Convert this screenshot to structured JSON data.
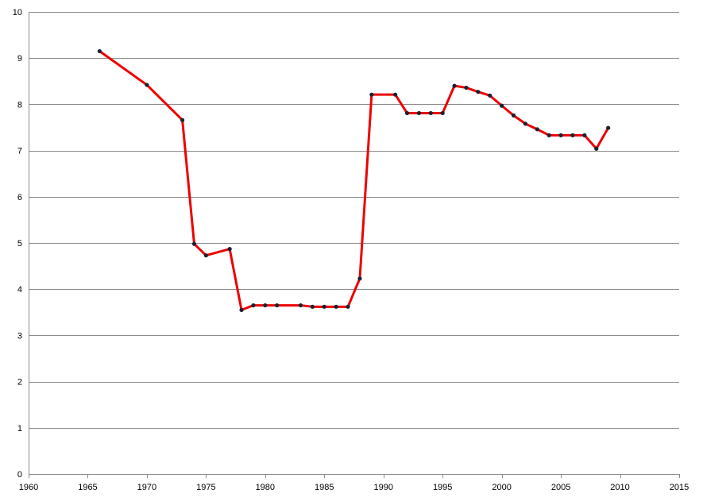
{
  "chart_data": {
    "type": "line",
    "title": "",
    "xlabel": "",
    "ylabel": "",
    "xlim": [
      1960,
      2015
    ],
    "ylim": [
      0,
      10
    ],
    "x_ticks": [
      "1960",
      "1965",
      "1970",
      "1975",
      "1980",
      "1985",
      "1990",
      "1995",
      "2000",
      "2005",
      "2010",
      "2015"
    ],
    "y_ticks": [
      "0",
      "1",
      "2",
      "3",
      "4",
      "5",
      "6",
      "7",
      "8",
      "9",
      "10"
    ],
    "grid": "horizontal",
    "legend": "none",
    "line_color": "#ee0000",
    "marker_color": "#1a2233",
    "series": [
      {
        "x": [
          1966,
          1970,
          1973,
          1974,
          1975,
          1977,
          1978,
          1979,
          1980,
          1981,
          1983,
          1984,
          1985,
          1986,
          1987,
          1988,
          1989,
          1991,
          1992,
          1993,
          1994,
          1995,
          1996,
          1997,
          1998,
          1999,
          2000,
          2001,
          2002,
          2003,
          2004,
          2005,
          2006,
          2007,
          2008,
          2009
        ],
        "y": [
          9.15,
          8.42,
          7.66,
          4.98,
          4.73,
          4.87,
          3.55,
          3.65,
          3.65,
          3.65,
          3.65,
          3.62,
          3.62,
          3.62,
          3.62,
          4.23,
          8.21,
          8.21,
          7.81,
          7.81,
          7.81,
          7.81,
          8.4,
          8.36,
          8.27,
          8.19,
          7.97,
          7.76,
          7.58,
          7.46,
          7.33,
          7.33,
          7.33,
          7.33,
          7.04,
          7.49
        ]
      }
    ]
  }
}
